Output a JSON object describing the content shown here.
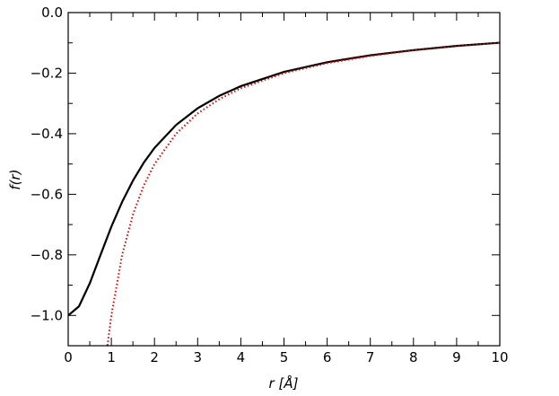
{
  "chart_data": {
    "type": "line",
    "xlabel": "r [Å]",
    "ylabel": "f(r)",
    "xlim": [
      0,
      10
    ],
    "ylim": [
      -1.1,
      0
    ],
    "xticks": [
      0,
      1,
      2,
      3,
      4,
      5,
      6,
      7,
      8,
      9,
      10
    ],
    "xminorticks": [
      0.5,
      1.5,
      2.5,
      3.5,
      4.5,
      5.5,
      6.5,
      7.5,
      8.5,
      9.5
    ],
    "yticks": [
      {
        "value": 0,
        "label": "0.0"
      },
      {
        "value": -0.2,
        "label": "−0.2"
      },
      {
        "value": -0.4,
        "label": "−0.4"
      },
      {
        "value": -0.6,
        "label": "−0.6"
      },
      {
        "value": -0.8,
        "label": "−0.8"
      },
      {
        "value": -1.0,
        "label": "−1.0"
      }
    ],
    "yminorticks": [
      -0.1,
      -0.3,
      -0.5,
      -0.7,
      -0.9
    ],
    "series": [
      {
        "color": "#000000",
        "style": "solid",
        "x": [
          0,
          0.25,
          0.5,
          0.75,
          1,
          1.25,
          1.5,
          1.75,
          2,
          2.5,
          3,
          3.5,
          4,
          5,
          6,
          7,
          8,
          9,
          10
        ],
        "values": [
          -1,
          -0.97,
          -0.894,
          -0.8,
          -0.707,
          -0.625,
          -0.555,
          -0.496,
          -0.447,
          -0.371,
          -0.316,
          -0.275,
          -0.243,
          -0.196,
          -0.164,
          -0.141,
          -0.124,
          -0.11,
          -0.0995
        ]
      },
      {
        "color": "#dd0000",
        "style": "dotted",
        "x": [
          0.91,
          1,
          1.25,
          1.5,
          1.75,
          2,
          2.5,
          3,
          3.5,
          4,
          5,
          6,
          7,
          8,
          9,
          10
        ],
        "values": [
          -1.099,
          -1,
          -0.8,
          -0.667,
          -0.571,
          -0.5,
          -0.4,
          -0.333,
          -0.286,
          -0.25,
          -0.2,
          -0.167,
          -0.143,
          -0.125,
          -0.111,
          -0.1
        ]
      }
    ]
  }
}
